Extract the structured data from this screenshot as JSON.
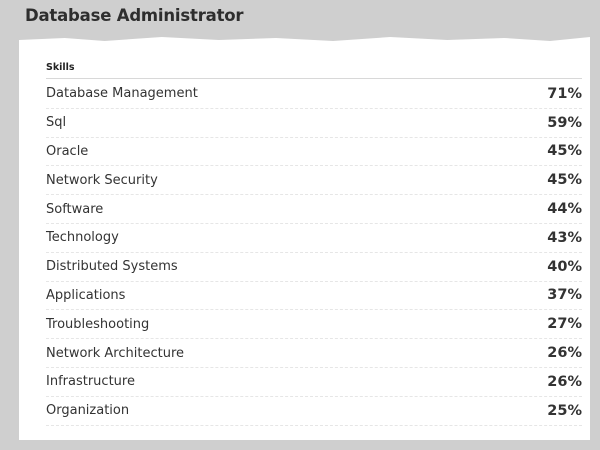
{
  "title": "Database Administrator",
  "table": {
    "header": "Skills",
    "rows": [
      {
        "skill": "Database Management",
        "percent": "71%"
      },
      {
        "skill": "Sql",
        "percent": "59%"
      },
      {
        "skill": "Oracle",
        "percent": "45%"
      },
      {
        "skill": "Network Security",
        "percent": "45%"
      },
      {
        "skill": "Software",
        "percent": "44%"
      },
      {
        "skill": "Technology",
        "percent": "43%"
      },
      {
        "skill": "Distributed Systems",
        "percent": "40%"
      },
      {
        "skill": "Applications",
        "percent": "37%"
      },
      {
        "skill": "Troubleshooting",
        "percent": "27%"
      },
      {
        "skill": "Network Architecture",
        "percent": "26%"
      },
      {
        "skill": "Infrastructure",
        "percent": "26%"
      },
      {
        "skill": "Organization",
        "percent": "25%"
      }
    ]
  }
}
